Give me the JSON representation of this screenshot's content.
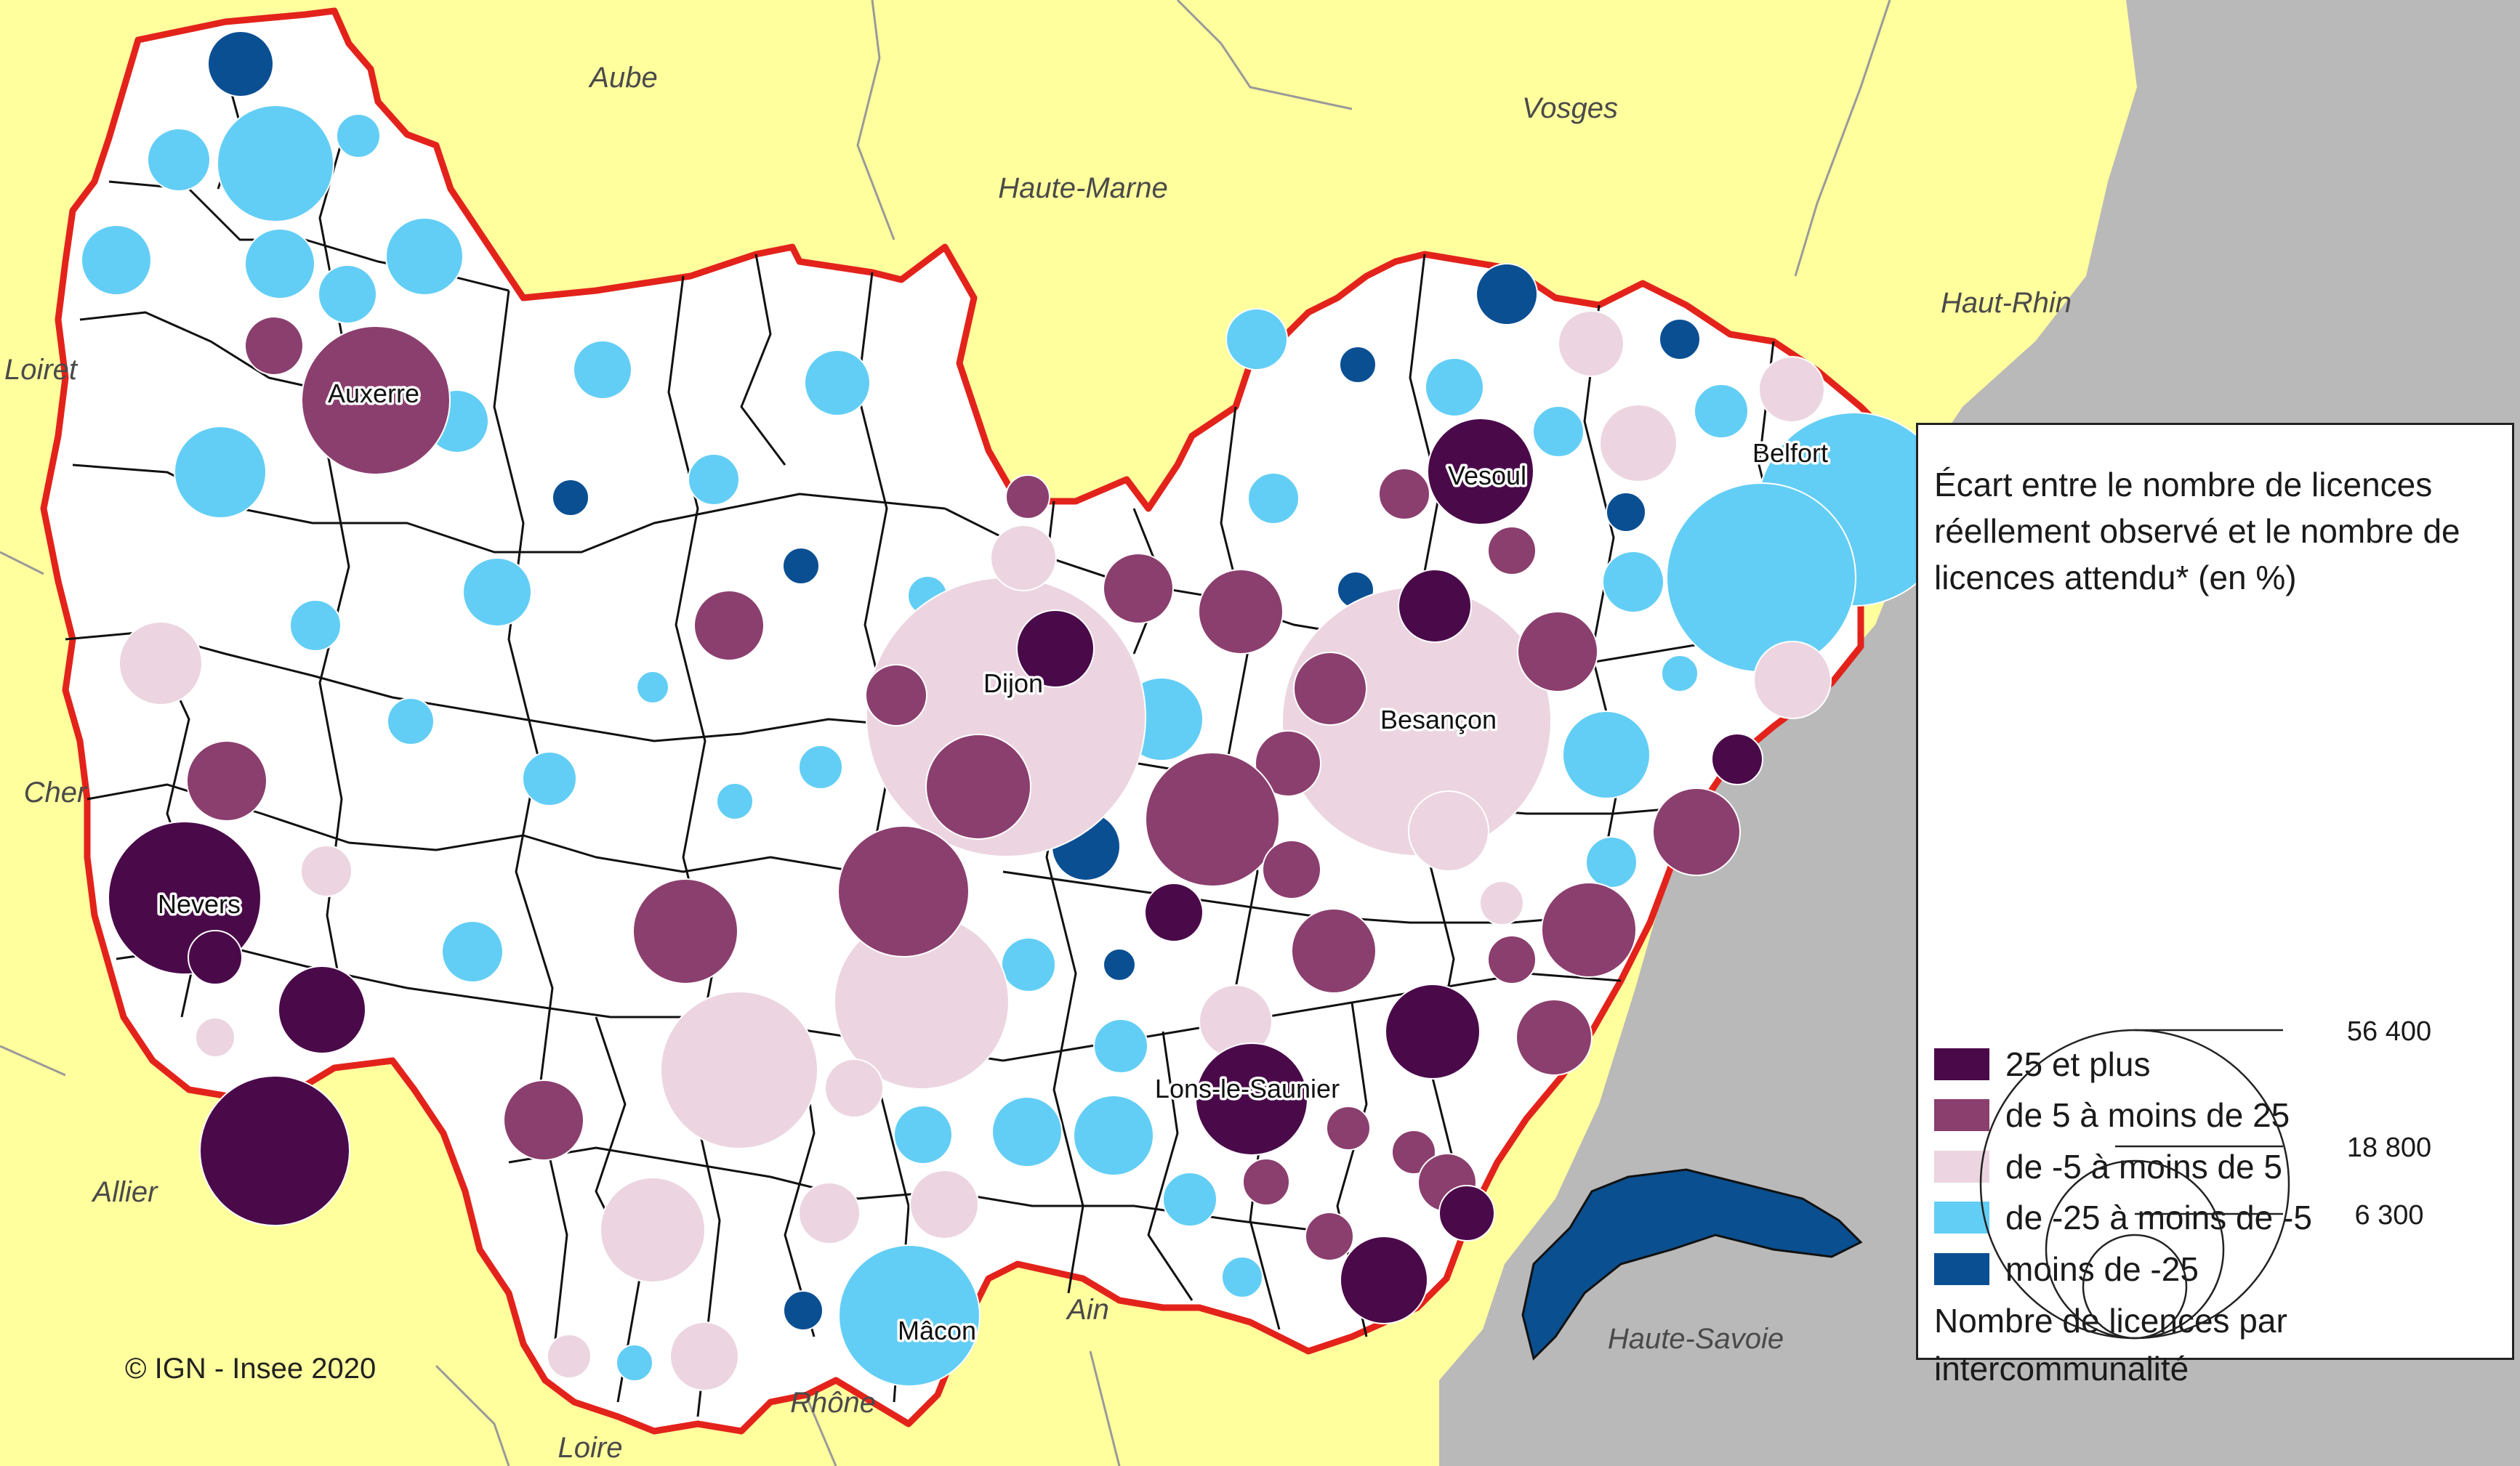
{
  "map": {
    "credit": "© IGN - Insee 2020",
    "colors": {
      "sea_gray": "#b9b9b9",
      "neighbor_yellow": "#ffff9e",
      "region_fill": "#ffffff",
      "region_border": "#e3231b",
      "lake": "#0a4f8f"
    },
    "departments": [
      {
        "name": "Aube"
      },
      {
        "name": "Vosges"
      },
      {
        "name": "Haute-Marne"
      },
      {
        "name": "Haut-Rhin"
      },
      {
        "name": "Loiret"
      },
      {
        "name": "Cher"
      },
      {
        "name": "Allier"
      },
      {
        "name": "Ain"
      },
      {
        "name": "Haute-Savoie"
      },
      {
        "name": "Rhône"
      },
      {
        "name": "Loire"
      }
    ],
    "cities": [
      {
        "name": "Auxerre"
      },
      {
        "name": "Vesoul"
      },
      {
        "name": "Belfort"
      },
      {
        "name": "Dijon"
      },
      {
        "name": "Besançon"
      },
      {
        "name": "Nevers"
      },
      {
        "name": "Lons-le-Saunier"
      },
      {
        "name": "Mâcon"
      }
    ]
  },
  "legend": {
    "title": "Écart entre le nombre de licences réellement observé et le nombre de licences attendu* (en %)",
    "classes": [
      {
        "label": "25 et plus",
        "color": "#4a0a4a"
      },
      {
        "label": "de 5 à moins de 25",
        "color": "#8b3f6e"
      },
      {
        "label": "de -5 à moins de 5",
        "color": "#ecd5e0"
      },
      {
        "label": "de -25 à moins de -5",
        "color": "#63cef5"
      },
      {
        "label": "moins de -25",
        "color": "#0b4f93"
      }
    ],
    "size_title": "Nombre de licences par intercommunalité",
    "sizes": [
      {
        "label": "56 400",
        "value": 56400
      },
      {
        "label": "18 800",
        "value": 18800
      },
      {
        "label": "6 300",
        "value": 6300
      }
    ]
  }
}
